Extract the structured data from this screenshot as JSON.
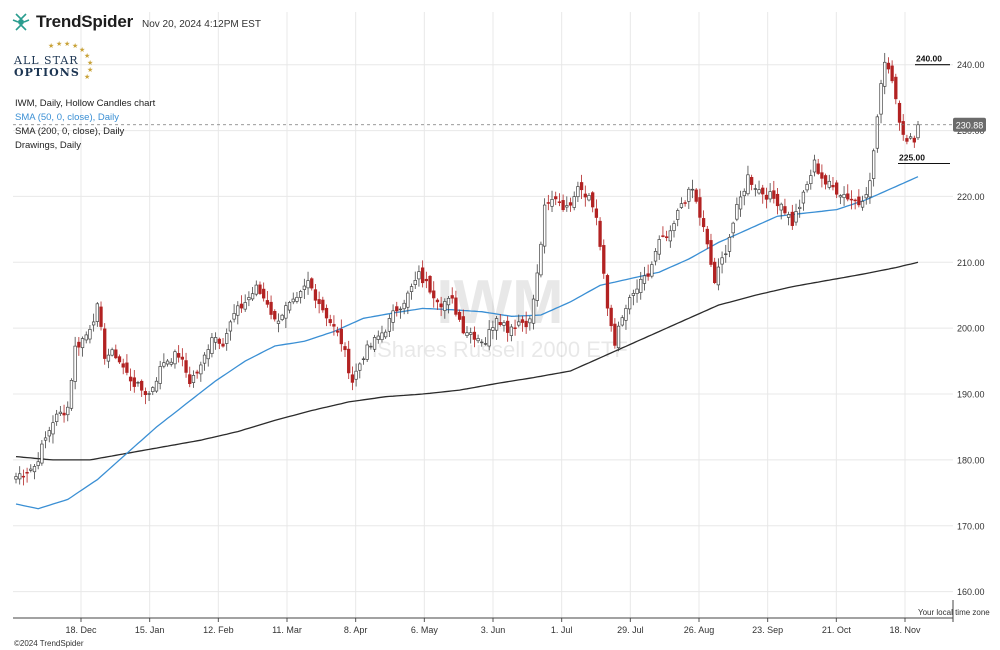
{
  "header": {
    "brand": "TrendSpider",
    "timestamp": "Nov 20, 2024 4:12PM EST",
    "badge_line1": "ALL STAR",
    "badge_line2": "OPTIONS"
  },
  "legend": {
    "main": "IWM, Daily, Hollow Candles chart",
    "sma50": "SMA (50, 0, close), Daily",
    "sma200": "SMA (200, 0, close), Daily",
    "drawings": "Drawings, Daily"
  },
  "footer": {
    "copyright": "©2024 TrendSpider",
    "timezone": "Your local time zone"
  },
  "colors": {
    "up": "#444444",
    "down": "#b22222",
    "sma50": "#3a8fd4",
    "sma200": "#2b2b2b",
    "grid": "#e8e8e8",
    "price_tag": "#6b6b6b"
  },
  "chart_data": {
    "type": "candlestick",
    "watermark": {
      "symbol": "IWM",
      "name": "iShares Russell 2000 ETF"
    },
    "x_ticks": [
      "18. Dec",
      "15. Jan",
      "12. Feb",
      "11. Mar",
      "8. Apr",
      "6. May",
      "3. Jun",
      "1. Jul",
      "29. Jul",
      "26. Aug",
      "23. Sep",
      "21. Oct",
      "18. Nov"
    ],
    "y_ticks": [
      "160.00",
      "170.00",
      "180.00",
      "190.00",
      "200.00",
      "210.00",
      "220.00",
      "230.00",
      "240.00"
    ],
    "ylim": [
      156,
      248
    ],
    "n_bars": 245,
    "last_price": "230.88",
    "last_price_value": 230.88,
    "levels": [
      {
        "label": "240.00",
        "value": 240.0
      },
      {
        "label": "225.00",
        "value": 225.0
      }
    ],
    "closes": [
      {
        "i": 0,
        "c": 177.5
      },
      {
        "i": 5,
        "c": 179.0
      },
      {
        "i": 10,
        "c": 186.0
      },
      {
        "i": 14,
        "c": 188.0
      },
      {
        "i": 16,
        "c": 197.0
      },
      {
        "i": 19,
        "c": 199.0
      },
      {
        "i": 22,
        "c": 203.0
      },
      {
        "i": 24,
        "c": 196.0
      },
      {
        "i": 27,
        "c": 196.0
      },
      {
        "i": 30,
        "c": 193.0
      },
      {
        "i": 33,
        "c": 191.0
      },
      {
        "i": 36,
        "c": 190.0
      },
      {
        "i": 40,
        "c": 195.0
      },
      {
        "i": 44,
        "c": 196.0
      },
      {
        "i": 47,
        "c": 192.0
      },
      {
        "i": 50,
        "c": 194.0
      },
      {
        "i": 53,
        "c": 199.0
      },
      {
        "i": 56,
        "c": 198.0
      },
      {
        "i": 59,
        "c": 202.0
      },
      {
        "i": 62,
        "c": 204.0
      },
      {
        "i": 65,
        "c": 206.0
      },
      {
        "i": 68,
        "c": 204.0
      },
      {
        "i": 70,
        "c": 201.0
      },
      {
        "i": 73,
        "c": 203.0
      },
      {
        "i": 76,
        "c": 204.0
      },
      {
        "i": 79,
        "c": 207.0
      },
      {
        "i": 82,
        "c": 204.0
      },
      {
        "i": 85,
        "c": 201.0
      },
      {
        "i": 88,
        "c": 198.0
      },
      {
        "i": 91,
        "c": 192.0
      },
      {
        "i": 94,
        "c": 196.0
      },
      {
        "i": 97,
        "c": 198.0
      },
      {
        "i": 100,
        "c": 200.0
      },
      {
        "i": 103,
        "c": 203.0
      },
      {
        "i": 106,
        "c": 205.0
      },
      {
        "i": 109,
        "c": 208.0
      },
      {
        "i": 112,
        "c": 206.0
      },
      {
        "i": 115,
        "c": 204.0
      },
      {
        "i": 118,
        "c": 204.0
      },
      {
        "i": 121,
        "c": 200.0
      },
      {
        "i": 124,
        "c": 199.0
      },
      {
        "i": 127,
        "c": 198.0
      },
      {
        "i": 130,
        "c": 202.0
      },
      {
        "i": 133,
        "c": 200.0
      },
      {
        "i": 136,
        "c": 201.0
      },
      {
        "i": 139,
        "c": 201.0
      },
      {
        "i": 141,
        "c": 208.0
      },
      {
        "i": 143,
        "c": 218.0
      },
      {
        "i": 146,
        "c": 220.0
      },
      {
        "i": 149,
        "c": 218.0
      },
      {
        "i": 152,
        "c": 222.0
      },
      {
        "i": 155,
        "c": 220.0
      },
      {
        "i": 157,
        "c": 217.0
      },
      {
        "i": 160,
        "c": 203.0
      },
      {
        "i": 162,
        "c": 198.0
      },
      {
        "i": 165,
        "c": 203.0
      },
      {
        "i": 168,
        "c": 206.0
      },
      {
        "i": 171,
        "c": 208.0
      },
      {
        "i": 174,
        "c": 213.0
      },
      {
        "i": 177,
        "c": 214.0
      },
      {
        "i": 180,
        "c": 219.0
      },
      {
        "i": 183,
        "c": 221.0
      },
      {
        "i": 186,
        "c": 215.0
      },
      {
        "i": 189,
        "c": 207.0
      },
      {
        "i": 192,
        "c": 212.0
      },
      {
        "i": 195,
        "c": 218.0
      },
      {
        "i": 198,
        "c": 223.0
      },
      {
        "i": 201,
        "c": 221.0
      },
      {
        "i": 204,
        "c": 220.0
      },
      {
        "i": 207,
        "c": 219.0
      },
      {
        "i": 210,
        "c": 216.0
      },
      {
        "i": 213,
        "c": 220.0
      },
      {
        "i": 216,
        "c": 225.0
      },
      {
        "i": 219,
        "c": 222.0
      },
      {
        "i": 222,
        "c": 221.0
      },
      {
        "i": 225,
        "c": 220.0
      },
      {
        "i": 228,
        "c": 219.0
      },
      {
        "i": 231,
        "c": 222.0
      },
      {
        "i": 233,
        "c": 232.0
      },
      {
        "i": 235,
        "c": 241.0
      },
      {
        "i": 237,
        "c": 238.0
      },
      {
        "i": 239,
        "c": 232.0
      },
      {
        "i": 241,
        "c": 228.0
      },
      {
        "i": 243,
        "c": 229.0
      },
      {
        "i": 244,
        "c": 230.88
      }
    ],
    "sma50": [
      {
        "i": 0,
        "v": 173.3
      },
      {
        "i": 6,
        "v": 172.6
      },
      {
        "i": 14,
        "v": 174.0
      },
      {
        "i": 22,
        "v": 177.0
      },
      {
        "i": 30,
        "v": 181.0
      },
      {
        "i": 38,
        "v": 185.0
      },
      {
        "i": 46,
        "v": 188.5
      },
      {
        "i": 54,
        "v": 192.0
      },
      {
        "i": 62,
        "v": 195.0
      },
      {
        "i": 70,
        "v": 197.3
      },
      {
        "i": 78,
        "v": 198.0
      },
      {
        "i": 86,
        "v": 199.5
      },
      {
        "i": 94,
        "v": 201.5
      },
      {
        "i": 102,
        "v": 202.3
      },
      {
        "i": 110,
        "v": 203.0
      },
      {
        "i": 118,
        "v": 202.8
      },
      {
        "i": 126,
        "v": 202.5
      },
      {
        "i": 134,
        "v": 201.8
      },
      {
        "i": 142,
        "v": 202.0
      },
      {
        "i": 150,
        "v": 204.0
      },
      {
        "i": 158,
        "v": 206.5
      },
      {
        "i": 166,
        "v": 207.5
      },
      {
        "i": 174,
        "v": 208.5
      },
      {
        "i": 182,
        "v": 210.5
      },
      {
        "i": 190,
        "v": 213.0
      },
      {
        "i": 198,
        "v": 215.0
      },
      {
        "i": 206,
        "v": 217.0
      },
      {
        "i": 214,
        "v": 217.5
      },
      {
        "i": 222,
        "v": 218.0
      },
      {
        "i": 230,
        "v": 219.5
      },
      {
        "i": 238,
        "v": 221.5
      },
      {
        "i": 244,
        "v": 223.0
      }
    ],
    "sma200": [
      {
        "i": 0,
        "v": 180.5
      },
      {
        "i": 10,
        "v": 180.0
      },
      {
        "i": 20,
        "v": 180.0
      },
      {
        "i": 30,
        "v": 181.0
      },
      {
        "i": 40,
        "v": 182.0
      },
      {
        "i": 50,
        "v": 183.0
      },
      {
        "i": 60,
        "v": 184.3
      },
      {
        "i": 70,
        "v": 186.0
      },
      {
        "i": 80,
        "v": 187.5
      },
      {
        "i": 90,
        "v": 188.8
      },
      {
        "i": 100,
        "v": 189.6
      },
      {
        "i": 110,
        "v": 190.0
      },
      {
        "i": 120,
        "v": 190.6
      },
      {
        "i": 130,
        "v": 191.6
      },
      {
        "i": 140,
        "v": 192.5
      },
      {
        "i": 150,
        "v": 193.5
      },
      {
        "i": 160,
        "v": 196.0
      },
      {
        "i": 170,
        "v": 198.5
      },
      {
        "i": 180,
        "v": 201.0
      },
      {
        "i": 190,
        "v": 203.5
      },
      {
        "i": 200,
        "v": 205.0
      },
      {
        "i": 210,
        "v": 206.3
      },
      {
        "i": 220,
        "v": 207.3
      },
      {
        "i": 230,
        "v": 208.3
      },
      {
        "i": 238,
        "v": 209.2
      },
      {
        "i": 244,
        "v": 210.0
      }
    ]
  }
}
